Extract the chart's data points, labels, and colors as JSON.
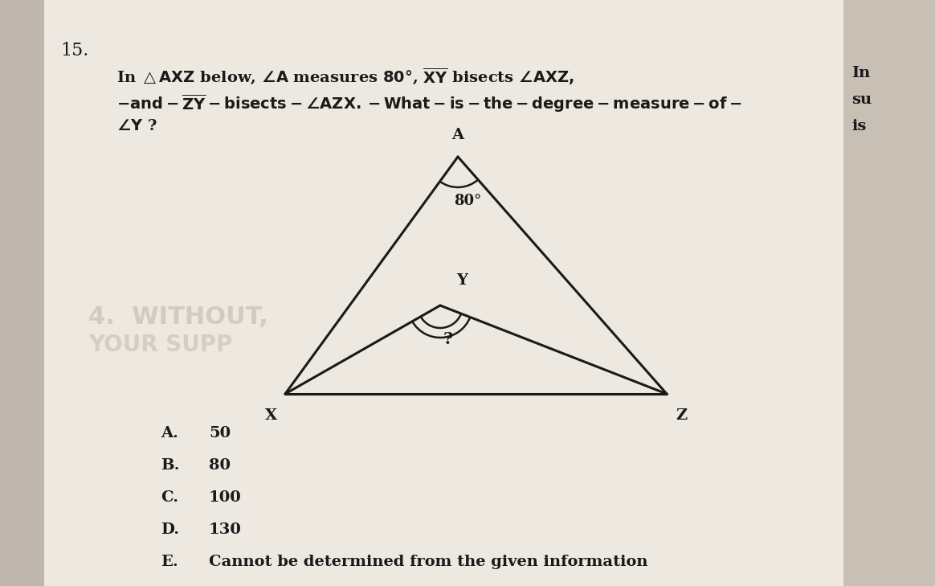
{
  "title_num": "15.",
  "bg_color": "#f0ece6",
  "page_color": "#e8e0d5",
  "triangle_color": "#1a1a1a",
  "text_color": "#1a1a1a",
  "gray_text_color": "#999999",
  "font_size_problem": 14,
  "font_size_choices": 14,
  "font_size_labels": 13,
  "font_size_angle": 12,
  "font_size_title": 16,
  "angle_label": "80°",
  "right_sidebar": [
    "In",
    "su",
    "is"
  ],
  "choices_letters": [
    "A.",
    "B.",
    "C.",
    "D.",
    "E."
  ],
  "choices_values": [
    "50",
    "80",
    "100",
    "130",
    "Cannot be determined from the given information"
  ],
  "watermark_lines": [
    "4.  WITHOUT,",
    "YOUR SUPP"
  ]
}
